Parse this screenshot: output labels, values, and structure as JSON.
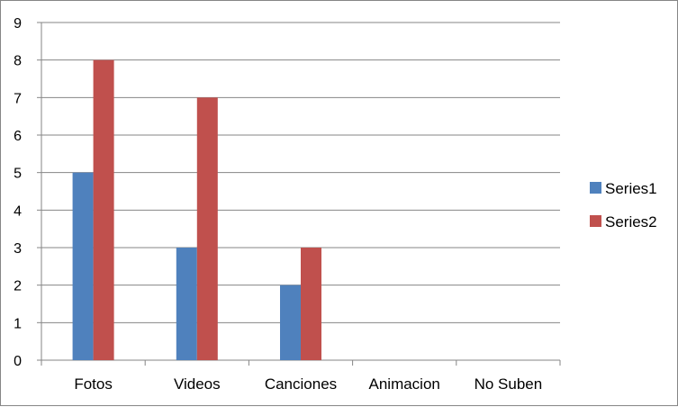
{
  "chart_data": {
    "type": "bar",
    "categories": [
      "Fotos",
      "Videos",
      "Canciones",
      "Animacion",
      "No Suben"
    ],
    "series": [
      {
        "name": "Series1",
        "values": [
          5,
          3,
          2,
          0,
          0
        ],
        "color": "#4F81BD"
      },
      {
        "name": "Series2",
        "values": [
          8,
          7,
          3,
          0,
          0
        ],
        "color": "#C0504D"
      }
    ],
    "title": "",
    "xlabel": "",
    "ylabel": "",
    "ylim": [
      0,
      9
    ],
    "yticks": [
      0,
      1,
      2,
      3,
      4,
      5,
      6,
      7,
      8,
      9
    ],
    "grid": true,
    "legend": "right"
  }
}
